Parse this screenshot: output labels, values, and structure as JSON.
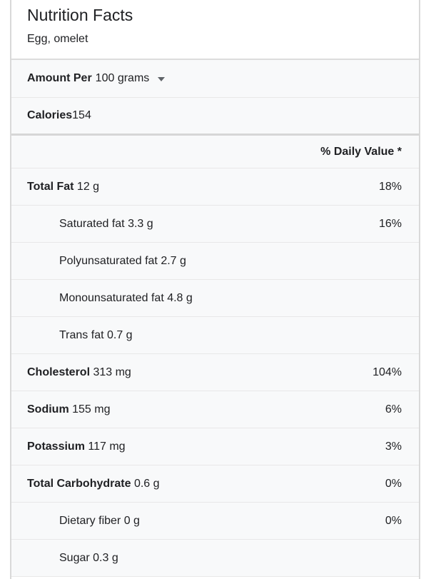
{
  "panel": {
    "title": "Nutrition Facts",
    "subtitle": "Egg, omelet",
    "amount_per": {
      "label": "Amount Per",
      "value": "100 grams"
    },
    "calories": {
      "label": "Calories",
      "value": "154"
    },
    "daily_value_header": "% Daily Value *",
    "rows": [
      {
        "label": "Total Fat",
        "amount": "12 g",
        "dv": "18%",
        "bold": true,
        "indent": false
      },
      {
        "label": "Saturated fat",
        "amount": "3.3 g",
        "dv": "16%",
        "bold": false,
        "indent": true
      },
      {
        "label": "Polyunsaturated fat",
        "amount": "2.7 g",
        "dv": "",
        "bold": false,
        "indent": true
      },
      {
        "label": "Monounsaturated fat",
        "amount": "4.8 g",
        "dv": "",
        "bold": false,
        "indent": true
      },
      {
        "label": "Trans fat",
        "amount": "0.7 g",
        "dv": "",
        "bold": false,
        "indent": true
      },
      {
        "label": "Cholesterol",
        "amount": "313 mg",
        "dv": "104%",
        "bold": true,
        "indent": false
      },
      {
        "label": "Sodium",
        "amount": "155 mg",
        "dv": "6%",
        "bold": true,
        "indent": false
      },
      {
        "label": "Potassium",
        "amount": "117 mg",
        "dv": "3%",
        "bold": true,
        "indent": false
      },
      {
        "label": "Total Carbohydrate",
        "amount": "0.6 g",
        "dv": "0%",
        "bold": true,
        "indent": false
      },
      {
        "label": "Dietary fiber",
        "amount": "0 g",
        "dv": "0%",
        "bold": false,
        "indent": true
      },
      {
        "label": "Sugar",
        "amount": "0.3 g",
        "dv": "",
        "bold": false,
        "indent": true
      }
    ]
  },
  "colors": {
    "text": "#202124",
    "row_background": "#f8f9fa",
    "panel_border": "#d9d9d9",
    "divider_thin": "#e8e8e8",
    "divider_mid": "#dcdcdc",
    "divider_thick": "#d6d6d6",
    "caret": "#5f6368"
  }
}
